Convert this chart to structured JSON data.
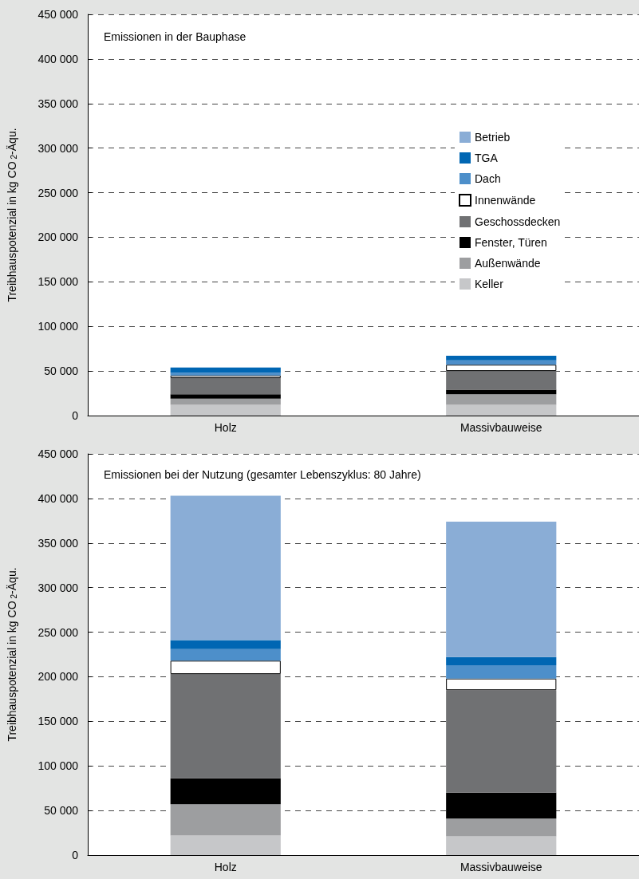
{
  "chart_data": [
    {
      "type": "bar",
      "stacked": true,
      "title": "Emissionen in der Bauphase",
      "ylabel": "Treibhauspotenzial in kg CO$_{2}$-Äqu.",
      "categories": [
        "Holz",
        "Massivbauweise"
      ],
      "ylim": [
        0,
        450000
      ],
      "yticks": [
        0,
        {
          "value": 50000,
          "label": "50 000"
        },
        {
          "value": 100000,
          "label": "100 000"
        },
        {
          "value": 150000,
          "label": "150 000"
        },
        {
          "value": 200000,
          "label": "200 000"
        },
        {
          "value": 250000,
          "label": "250 000"
        },
        {
          "value": 300000,
          "label": "300 000"
        },
        {
          "value": 350000,
          "label": "350 000"
        },
        {
          "value": 400000,
          "label": "400 000"
        },
        {
          "value": 450000,
          "label": "450 000"
        }
      ],
      "grid": "y",
      "legend": "right",
      "series": [
        {
          "name": "Keller",
          "color": "#c6c7c9",
          "values": [
            12000,
            12000
          ]
        },
        {
          "name": "Außenwände",
          "color": "#9d9ea0",
          "values": [
            7000,
            12000
          ]
        },
        {
          "name": "Fenster, Türen",
          "color": "#000000",
          "values": [
            5000,
            5000
          ]
        },
        {
          "name": "Geschossdecken",
          "color": "#707173",
          "values": [
            18000,
            21000
          ]
        },
        {
          "name": "Innenwände",
          "color": "#ffffff",
          "values": [
            3000,
            7000
          ]
        },
        {
          "name": "Dach",
          "color": "#4d8fca",
          "values": [
            3000,
            5000
          ]
        },
        {
          "name": "TGA",
          "color": "#0066b3",
          "values": [
            6000,
            5000
          ]
        },
        {
          "name": "Betrieb",
          "color": "#8aadd6",
          "values": [
            0,
            0
          ]
        }
      ]
    },
    {
      "type": "bar",
      "stacked": true,
      "title": "Emissionen bei der Nutzung (gesamter Lebenszyklus: 80 Jahre)",
      "ylabel": "Treibhauspotenzial in kg CO$_{2}$-Äqu.",
      "categories": [
        "Holz",
        "Massivbauweise"
      ],
      "ylim": [
        0,
        450000
      ],
      "yticks": [
        0,
        {
          "value": 50000,
          "label": "50 000"
        },
        {
          "value": 100000,
          "label": "100 000"
        },
        {
          "value": 150000,
          "label": "150 000"
        },
        {
          "value": 200000,
          "label": "200 000"
        },
        {
          "value": 250000,
          "label": "250 000"
        },
        {
          "value": 300000,
          "label": "300 000"
        },
        {
          "value": 350000,
          "label": "350 000"
        },
        {
          "value": 400000,
          "label": "400 000"
        },
        {
          "value": 450000,
          "label": "450 000"
        }
      ],
      "grid": "y",
      "series": [
        {
          "color": "#c6c7c9",
          "values": [
            22000,
            21000
          ]
        },
        {
          "color": "#9d9ea0",
          "values": [
            35000,
            20000
          ]
        },
        {
          "color": "#000000",
          "values": [
            29000,
            29000
          ]
        },
        {
          "color": "#707173",
          "values": [
            117000,
            115000
          ]
        },
        {
          "color": "#ffffff",
          "values": [
            15000,
            13000
          ]
        },
        {
          "color": "#4d8fca",
          "values": [
            13000,
            15000
          ]
        },
        {
          "color": "#0066b3",
          "values": [
            10000,
            9000
          ]
        },
        {
          "color": "#8aadd6",
          "values": [
            162000,
            152000
          ]
        }
      ]
    }
  ]
}
